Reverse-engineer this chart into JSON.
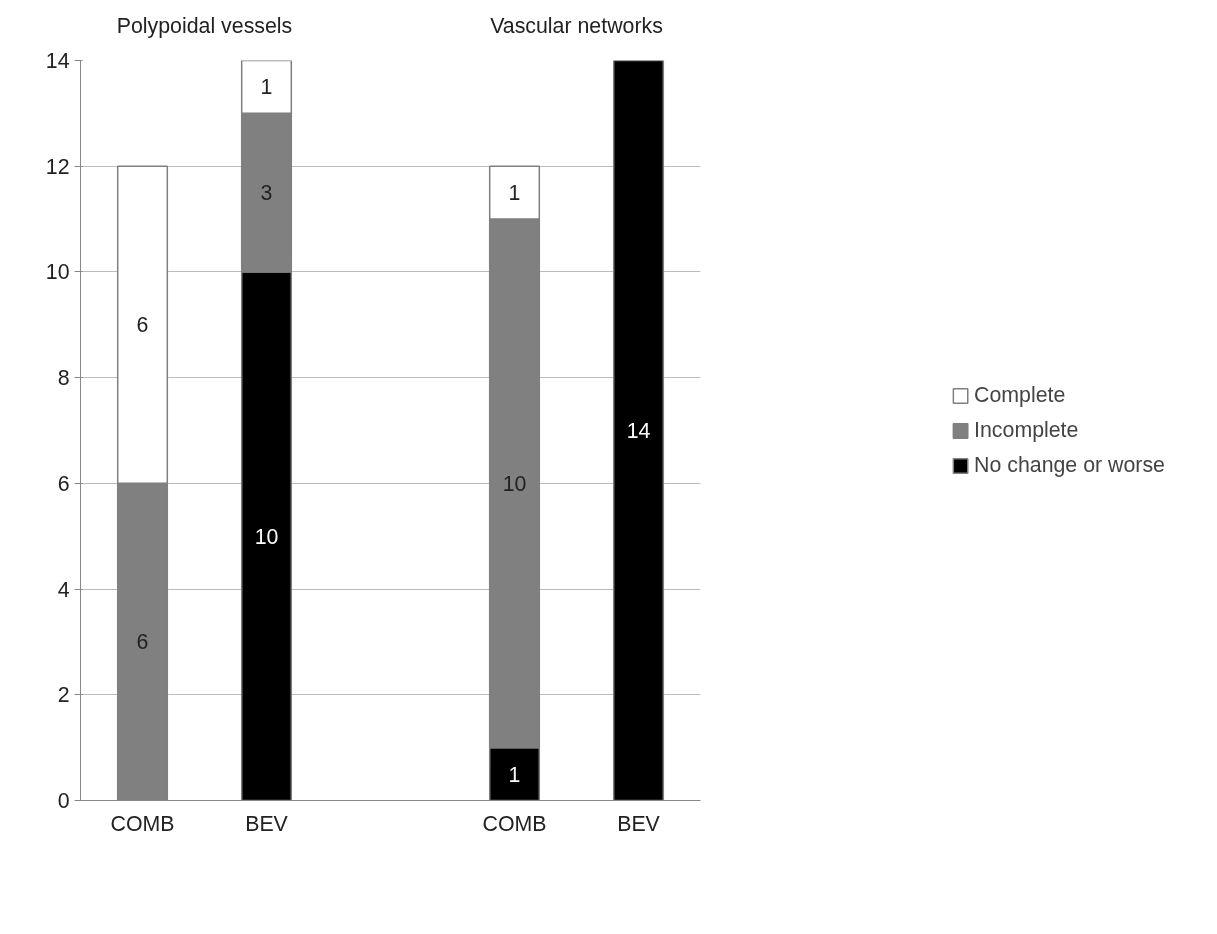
{
  "chart_data": {
    "type": "bar",
    "stacked": true,
    "categories": [
      "COMB",
      "BEV",
      null,
      "COMB",
      "BEV"
    ],
    "series": [
      {
        "name": "No change or worse",
        "color": "#000000",
        "values": [
          null,
          10,
          null,
          1,
          14
        ],
        "value_labels": [
          null,
          "10",
          null,
          "1",
          "14"
        ]
      },
      {
        "name": "Incomplete",
        "color": "#808080",
        "values": [
          6,
          3,
          null,
          10,
          null
        ],
        "value_labels": [
          "6",
          "3",
          null,
          "10",
          null
        ]
      },
      {
        "name": "Complete",
        "color": "#ffffff",
        "values": [
          6,
          1,
          null,
          1,
          null
        ],
        "value_labels": [
          "6",
          "1",
          null,
          "1",
          null
        ]
      }
    ],
    "annotations": [
      "Polypoidal vessels",
      "Vascular networks"
    ],
    "ylim": [
      0,
      14
    ],
    "yticks": [
      0,
      2,
      4,
      6,
      8,
      10,
      12,
      14
    ],
    "grid": "y",
    "legend": "right"
  }
}
